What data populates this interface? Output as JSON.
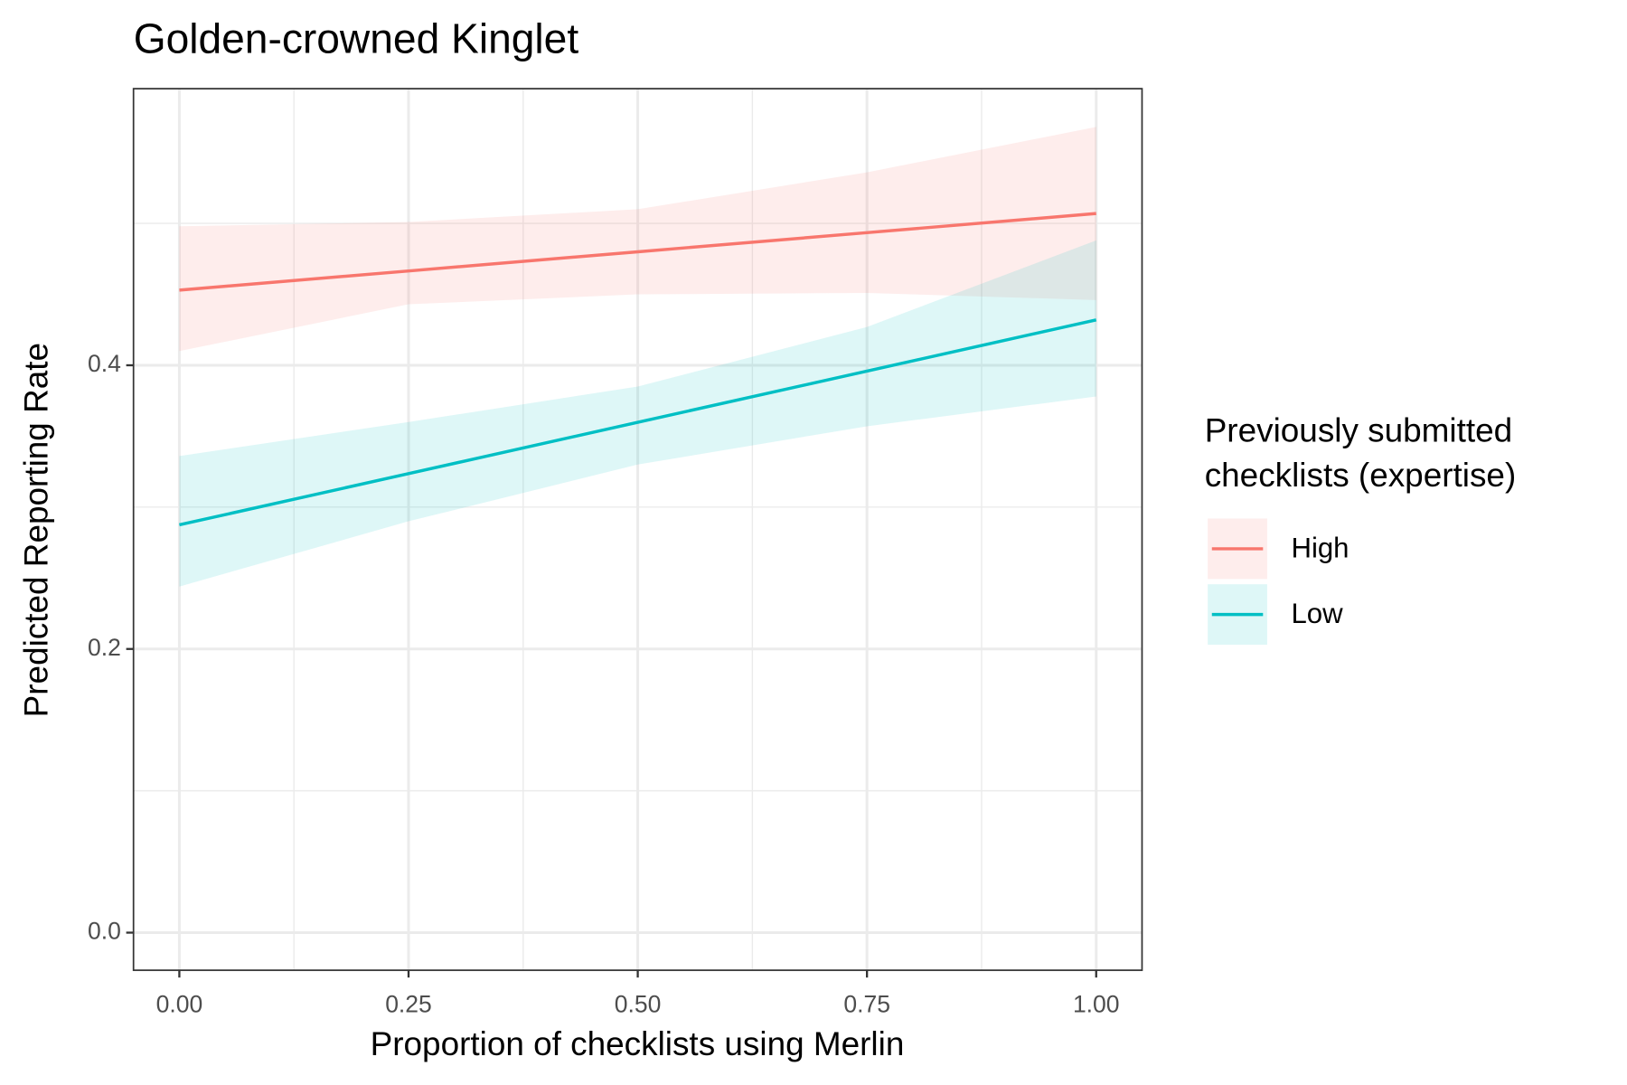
{
  "chart_data": {
    "type": "line",
    "title": "Golden-crowned Kinglet",
    "x_label": "Proportion of checklists using Merlin",
    "y_label": "Predicted Reporting Rate",
    "legend_title": [
      "Previously submitted",
      "checklists (expertise)"
    ],
    "legend_position": "right",
    "grid": true,
    "x": [
      0,
      0.25,
      0.5,
      0.75,
      1
    ],
    "series": [
      {
        "name": "High",
        "color": "#F8766D",
        "values": [
          0.453,
          0.4665,
          0.48,
          0.4935,
          0.507
        ],
        "lower": [
          0.41,
          0.443,
          0.45,
          0.451,
          0.446
        ],
        "upper": [
          0.498,
          0.501,
          0.51,
          0.536,
          0.568
        ]
      },
      {
        "name": "Low",
        "color": "#00BFC4",
        "values": [
          0.2875,
          0.3236,
          0.3598,
          0.3959,
          0.432
        ],
        "lower": [
          0.244,
          0.29,
          0.33,
          0.357,
          0.378
        ],
        "upper": [
          0.336,
          0.36,
          0.385,
          0.427,
          0.488
        ]
      }
    ],
    "xlim": [
      -0.05,
      1.05
    ],
    "ylim": [
      -0.0265,
      0.595
    ],
    "xticks": [
      {
        "value": 0,
        "label": "0.00"
      },
      0.25,
      {
        "value": 0.5,
        "label": "0.50"
      },
      0.75,
      {
        "value": 1,
        "label": "1.00"
      }
    ],
    "yticks": [
      {
        "value": 0,
        "label": "0.0"
      },
      0.2,
      0.4
    ],
    "xminor": [
      0.125,
      0.375,
      0.625,
      0.875
    ],
    "yminor": [
      0.1,
      0.3,
      0.5
    ]
  }
}
